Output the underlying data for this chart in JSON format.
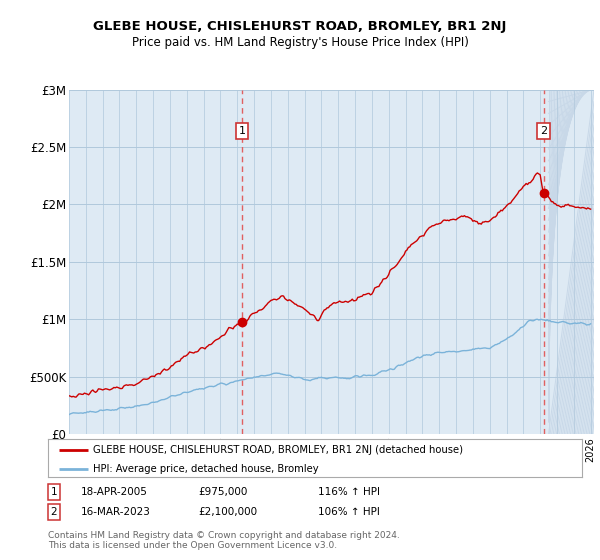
{
  "title": "GLEBE HOUSE, CHISLEHURST ROAD, BROMLEY, BR1 2NJ",
  "subtitle": "Price paid vs. HM Land Registry's House Price Index (HPI)",
  "ylim": [
    0,
    3000000
  ],
  "yticks": [
    0,
    500000,
    1000000,
    1500000,
    2000000,
    2500000,
    3000000
  ],
  "ytick_labels": [
    "£0",
    "£500K",
    "£1M",
    "£1.5M",
    "£2M",
    "£2.5M",
    "£3M"
  ],
  "xlim_start": 1995.0,
  "xlim_end": 2026.2,
  "sale1_year": 2005.29,
  "sale1_price": 975000,
  "sale1_label": "1",
  "sale1_date": "18-APR-2005",
  "sale1_price_str": "£975,000",
  "sale1_hpi": "116% ↑ HPI",
  "sale2_year": 2023.21,
  "sale2_price": 2100000,
  "sale2_label": "2",
  "sale2_date": "16-MAR-2023",
  "sale2_price_str": "£2,100,000",
  "sale2_hpi": "106% ↑ HPI",
  "property_line_color": "#cc0000",
  "hpi_line_color": "#7bb3d9",
  "plot_bg_color": "#deeaf4",
  "background_color": "#ffffff",
  "grid_color": "#b0c8dc",
  "dashed_line_color": "#e06060",
  "hatch_color": "#c8d8e8",
  "legend_label_property": "GLEBE HOUSE, CHISLEHURST ROAD, BROMLEY, BR1 2NJ (detached house)",
  "legend_label_hpi": "HPI: Average price, detached house, Bromley",
  "footer_text": "Contains HM Land Registry data © Crown copyright and database right 2024.\nThis data is licensed under the Open Government Licence v3.0."
}
